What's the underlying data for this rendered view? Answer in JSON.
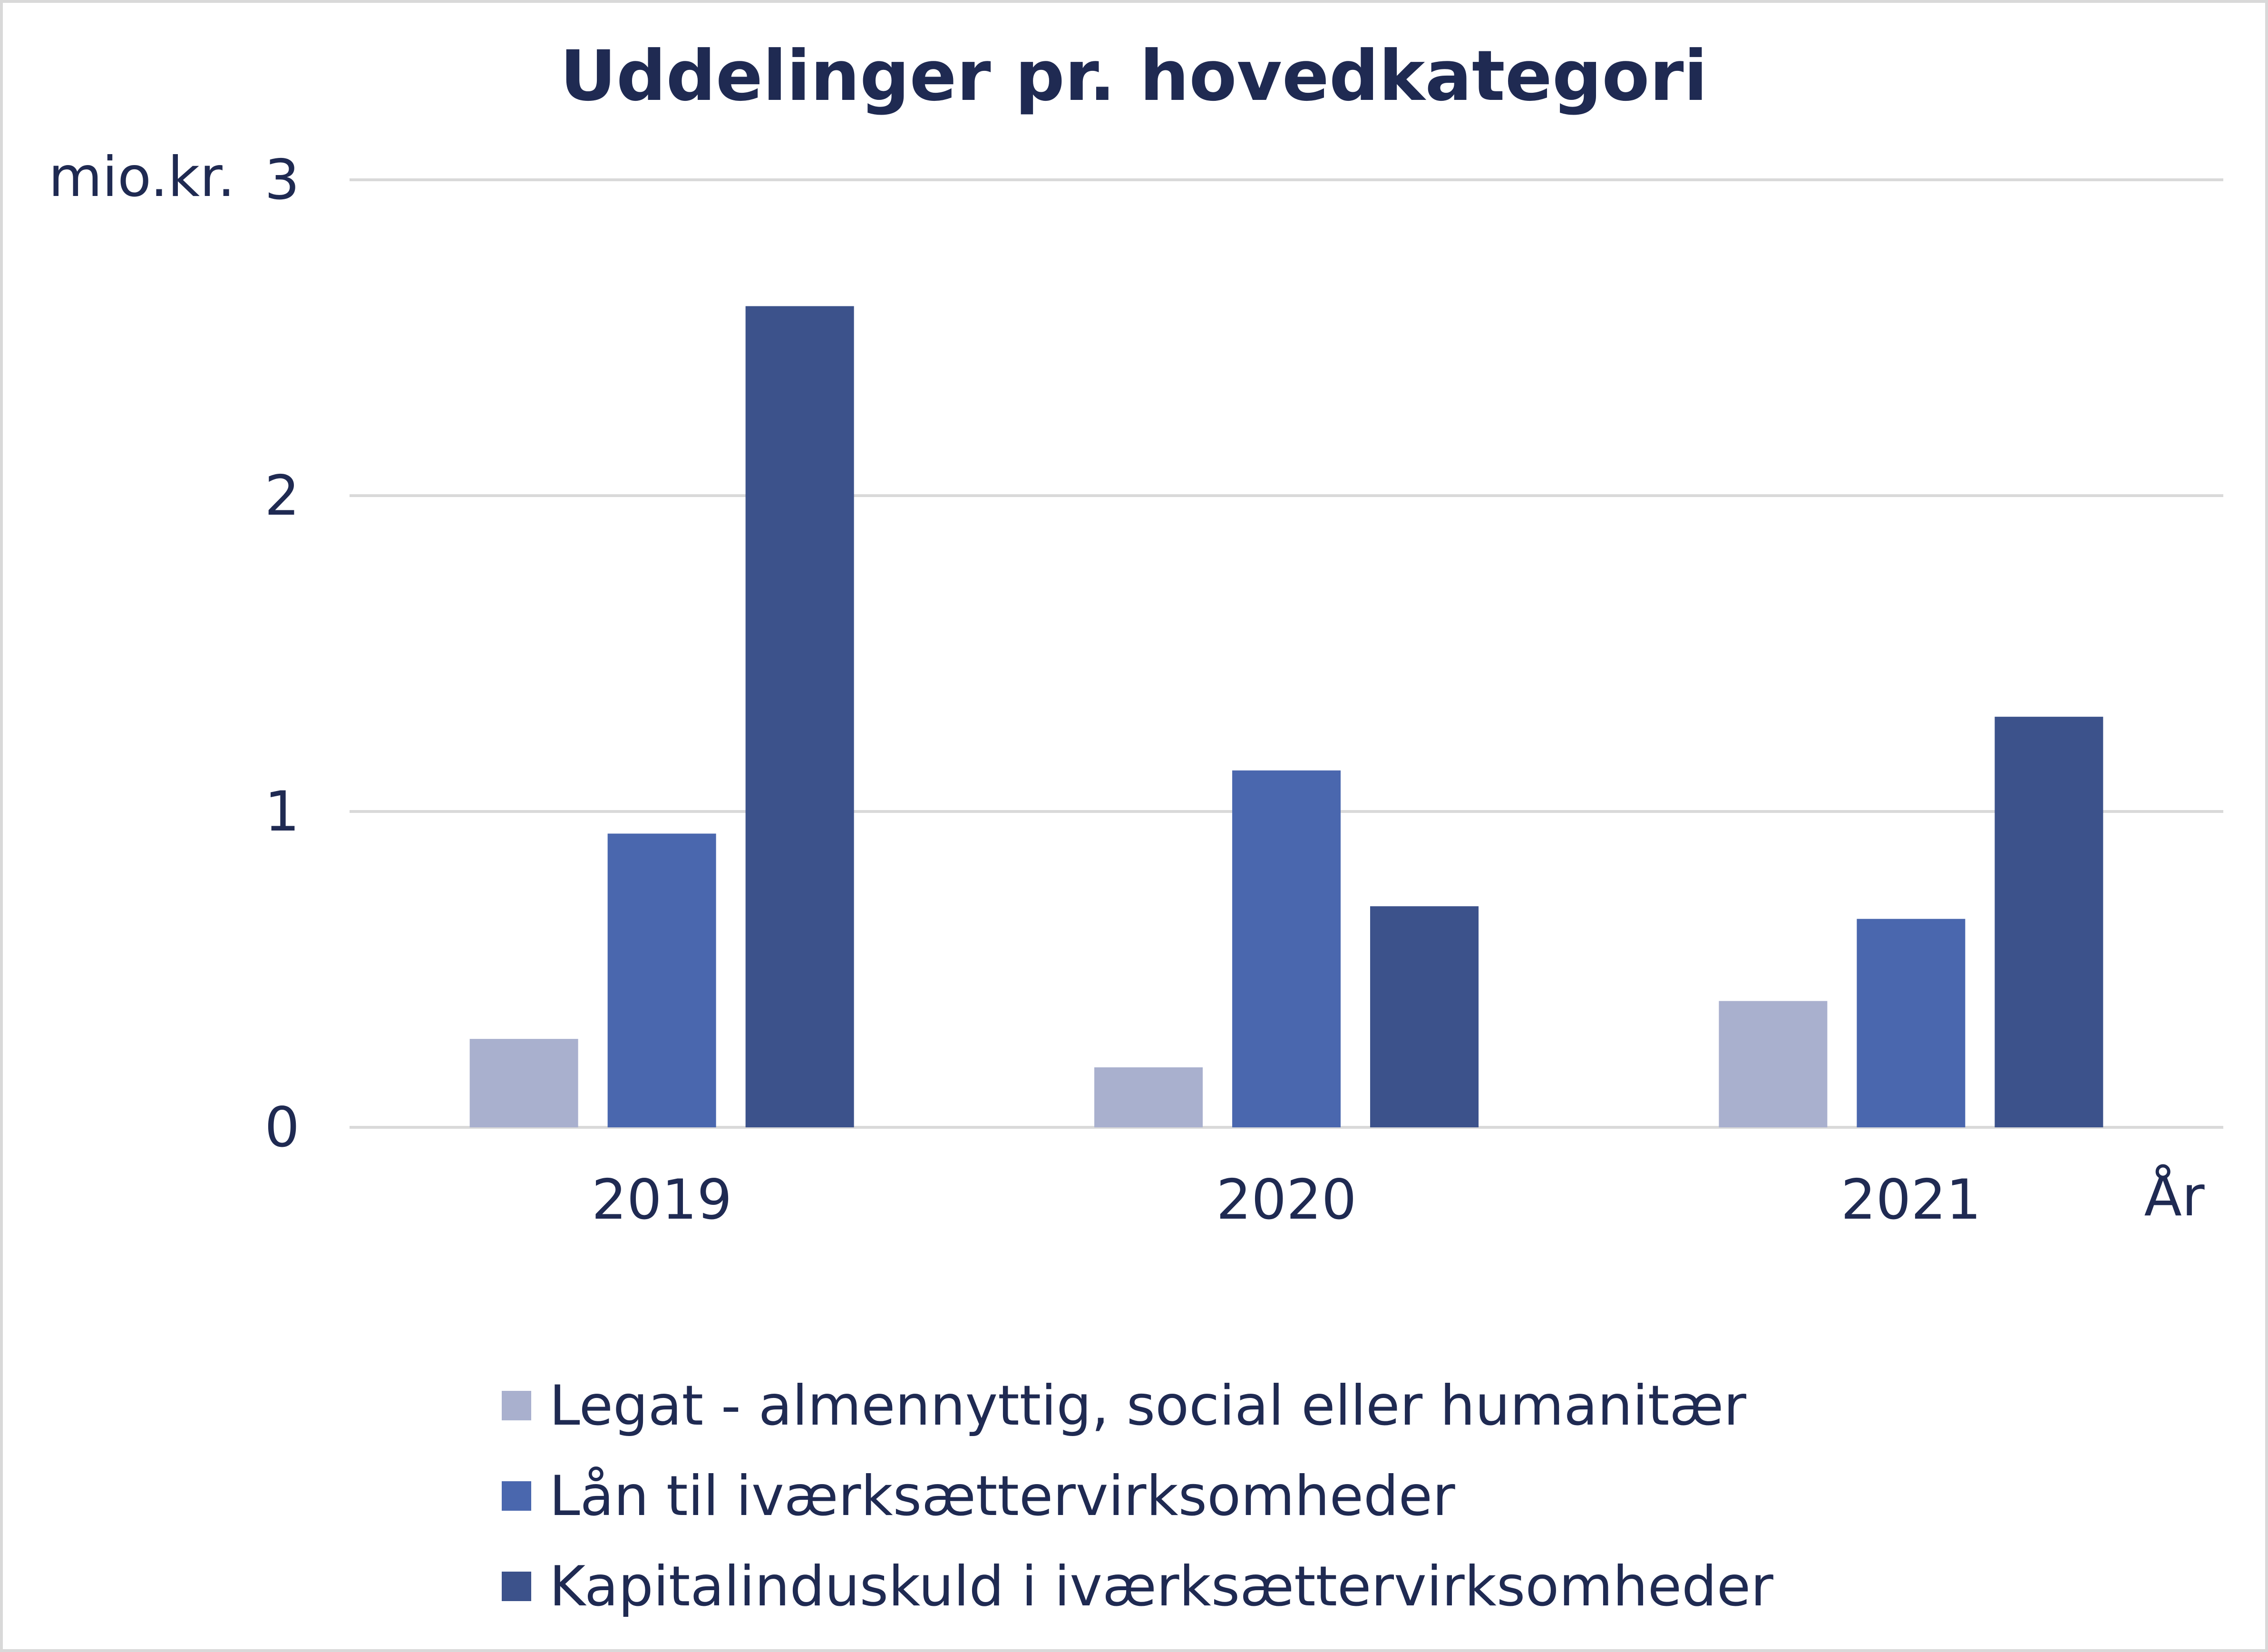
{
  "chart_data": {
    "type": "bar",
    "title": "Uddelinger pr. hovedkategori",
    "ylabel": "mio.kr.",
    "xlabel": "År",
    "categories": [
      "2019",
      "2020",
      "2021"
    ],
    "ylim": [
      0,
      3
    ],
    "yticks": [
      "0",
      "1",
      "2",
      "3"
    ],
    "grid": true,
    "legend_position": "bottom",
    "series": [
      {
        "name": "Legat - almennyttig, social eller humanitær",
        "values": [
          0.28,
          0.19,
          0.4
        ],
        "color": "#a9b0ce"
      },
      {
        "name": "Lån til iværksættervirksomheder",
        "values": [
          0.93,
          1.13,
          0.66
        ],
        "color": "#4a67ae"
      },
      {
        "name": "Kapitalinduskuld i iværksættervirksomheder",
        "values": [
          2.6,
          0.7,
          1.3
        ],
        "color": "#3c528b"
      }
    ]
  }
}
